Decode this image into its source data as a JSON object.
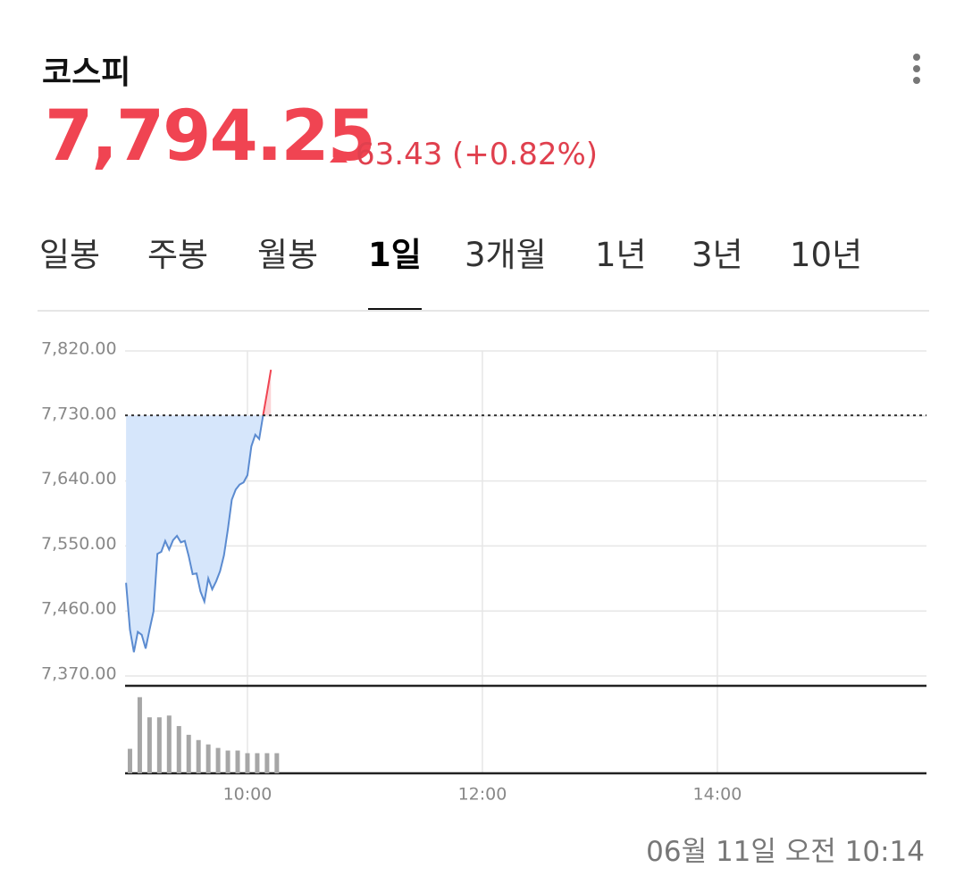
{
  "header": {
    "title": "코스피",
    "price": "7,794.25",
    "change": "63.43",
    "change_pct": "(+0.82%)"
  },
  "tabs": [
    "일봉",
    "주봉",
    "월봉",
    "1일",
    "3개월",
    "1년",
    "3년",
    "10년"
  ],
  "selected_tab": 3,
  "timestamp": "06월 11일 오전 10:14",
  "chart_data": {
    "type": "line",
    "x": [
      538,
      540,
      542,
      544,
      546,
      548,
      550,
      552,
      554,
      556,
      558,
      560,
      562,
      564,
      566,
      568,
      570,
      572,
      574,
      576,
      578,
      580,
      582,
      584,
      586,
      588,
      590,
      592,
      594,
      596,
      598,
      600,
      602,
      604,
      606,
      608,
      610,
      612
    ],
    "series": [
      {
        "color": "#5b8bd0",
        "fill_color": "#d6e6fb",
        "up_color": "#f04452",
        "up_fill_color": "#fbd3d6",
        "values": [
          7499,
          7434,
          7403,
          7431,
          7427,
          7408,
          7434,
          7459,
          7539,
          7542,
          7557,
          7545,
          7558,
          7564,
          7555,
          7557,
          7536,
          7511,
          7512,
          7487,
          7473,
          7505,
          7490,
          7501,
          7515,
          7537,
          7573,
          7614,
          7628,
          7635,
          7638,
          7648,
          7688,
          7704,
          7698,
          7731,
          7762,
          7794
        ]
      }
    ],
    "reference_line": 7730.82,
    "xlim": [
      537.5,
      946.8
    ],
    "xticks": [
      {
        "value": 600,
        "label": "10:00"
      },
      {
        "value": 720,
        "label": "12:00"
      },
      {
        "value": 840,
        "label": "14:00"
      }
    ],
    "ylim": [
      7370,
      7820
    ],
    "yticks": [
      {
        "value": 7370,
        "label": "7,370.00"
      },
      {
        "value": 7460,
        "label": "7,460.00"
      },
      {
        "value": 7550,
        "label": "7,550.00"
      },
      {
        "value": 7640,
        "label": "7,640.00"
      },
      {
        "value": 7730,
        "label": "7,730.00"
      },
      {
        "value": 7820,
        "label": "7,820.00"
      }
    ],
    "grid": true,
    "volume": {
      "color": "#a6a6a6",
      "x": [
        540,
        545,
        550,
        555,
        560,
        565,
        570,
        575,
        580,
        585,
        590,
        595,
        600,
        605,
        610,
        615
      ],
      "values": [
        28,
        87,
        64,
        64,
        66,
        54,
        44,
        38,
        33,
        29,
        26,
        26,
        23,
        23,
        23,
        23
      ],
      "ylim": [
        0,
        100
      ]
    }
  }
}
